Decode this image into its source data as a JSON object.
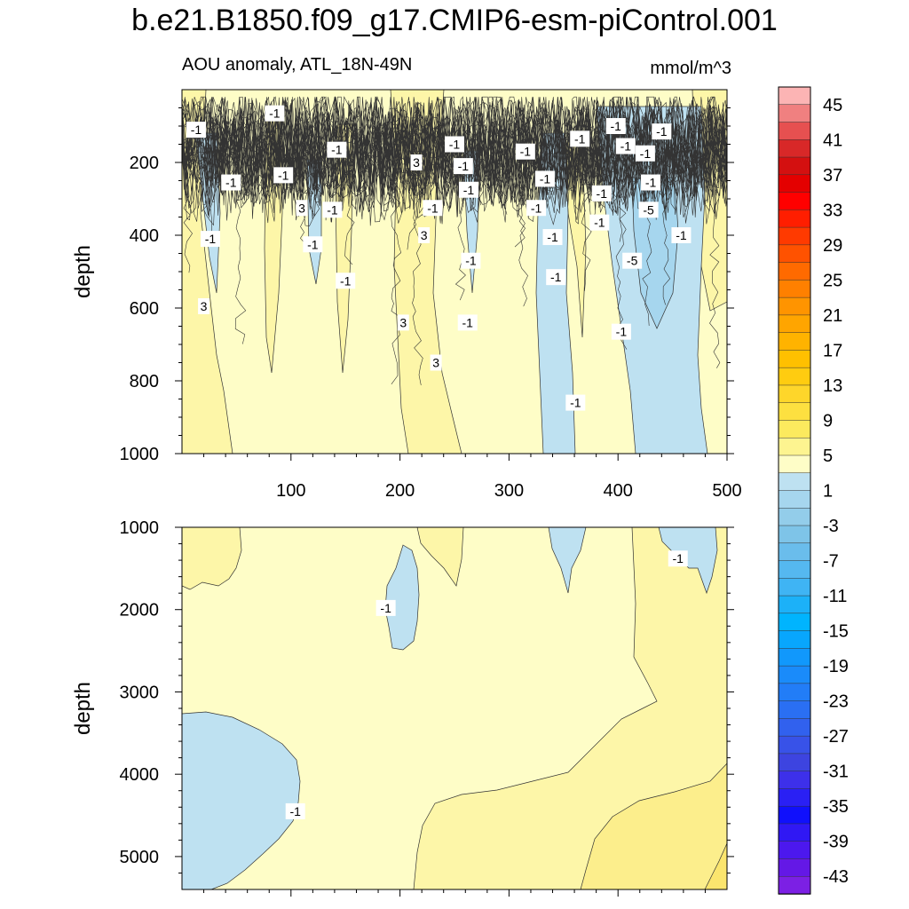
{
  "figure_title": "b.e21.B1850.f09_g17.CMIP6-esm-piControl.001",
  "subtitle": "AOU anomaly, ATL_18N-49N",
  "units": "mmol/m^3",
  "colors": {
    "cold1": "#bee1f1",
    "warm1": "#fefdc7",
    "warm2": "#fdf6a8",
    "warm3": "#fcee8c",
    "warm4": "#fbe56e",
    "line": "#333333"
  },
  "chart_data": [
    {
      "type": "contour",
      "panel": "top",
      "xlabel": "",
      "ylabel": "depth",
      "xlim": [
        0,
        500
      ],
      "ylim": [
        1000,
        0
      ],
      "xticks": [
        100,
        200,
        300,
        400,
        500
      ],
      "xtick_labels": [
        "100",
        "200",
        "300",
        "400",
        "500"
      ],
      "yticks": [
        200,
        400,
        600,
        800,
        1000
      ],
      "ytick_labels": [
        "200",
        "400",
        "600",
        "800",
        "1000"
      ],
      "contour_labels": [
        {
          "x": 85,
          "depth": 65,
          "text": "-1"
        },
        {
          "x": 13,
          "depth": 110,
          "text": "-1"
        },
        {
          "x": 142,
          "depth": 165,
          "text": "-1"
        },
        {
          "x": 250,
          "depth": 150,
          "text": "-1"
        },
        {
          "x": 315,
          "depth": 170,
          "text": "-1"
        },
        {
          "x": 365,
          "depth": 135,
          "text": "-1"
        },
        {
          "x": 398,
          "depth": 100,
          "text": "-1"
        },
        {
          "x": 407,
          "depth": 155,
          "text": "-1"
        },
        {
          "x": 425,
          "depth": 175,
          "text": "-1"
        },
        {
          "x": 440,
          "depth": 115,
          "text": "-1"
        },
        {
          "x": 45,
          "depth": 255,
          "text": "-1"
        },
        {
          "x": 93,
          "depth": 235,
          "text": "-1"
        },
        {
          "x": 215,
          "depth": 200,
          "text": "3"
        },
        {
          "x": 258,
          "depth": 210,
          "text": "-1"
        },
        {
          "x": 263,
          "depth": 275,
          "text": "-1"
        },
        {
          "x": 333,
          "depth": 245,
          "text": "-1"
        },
        {
          "x": 385,
          "depth": 285,
          "text": "-1"
        },
        {
          "x": 430,
          "depth": 255,
          "text": "-1"
        },
        {
          "x": 110,
          "depth": 325,
          "text": "3"
        },
        {
          "x": 138,
          "depth": 330,
          "text": "-1"
        },
        {
          "x": 230,
          "depth": 325,
          "text": "-1"
        },
        {
          "x": 325,
          "depth": 325,
          "text": "-1"
        },
        {
          "x": 428,
          "depth": 330,
          "text": "-5"
        },
        {
          "x": 383,
          "depth": 365,
          "text": "-1"
        },
        {
          "x": 26,
          "depth": 410,
          "text": "-1"
        },
        {
          "x": 222,
          "depth": 400,
          "text": "3"
        },
        {
          "x": 120,
          "depth": 425,
          "text": "-1"
        },
        {
          "x": 340,
          "depth": 405,
          "text": "-1"
        },
        {
          "x": 458,
          "depth": 400,
          "text": "-1"
        },
        {
          "x": 265,
          "depth": 470,
          "text": "-1"
        },
        {
          "x": 413,
          "depth": 470,
          "text": "-5"
        },
        {
          "x": 150,
          "depth": 525,
          "text": "-1"
        },
        {
          "x": 343,
          "depth": 515,
          "text": "-1"
        },
        {
          "x": 20,
          "depth": 595,
          "text": "3"
        },
        {
          "x": 203,
          "depth": 640,
          "text": "3"
        },
        {
          "x": 262,
          "depth": 640,
          "text": "-1"
        },
        {
          "x": 403,
          "depth": 665,
          "text": "-1"
        },
        {
          "x": 233,
          "depth": 750,
          "text": "3"
        },
        {
          "x": 361,
          "depth": 860,
          "text": "-1"
        }
      ]
    },
    {
      "type": "contour",
      "panel": "bottom",
      "xlabel": "",
      "ylabel": "depth",
      "xlim": [
        0,
        500
      ],
      "ylim": [
        5400,
        1000
      ],
      "yticks": [
        1000,
        2000,
        3000,
        4000,
        5000
      ],
      "ytick_labels": [
        "1000",
        "2000",
        "3000",
        "4000",
        "5000"
      ],
      "contour_labels": [
        {
          "x": 455,
          "depth": 1380,
          "text": "-1"
        },
        {
          "x": 187,
          "depth": 1980,
          "text": "-1"
        },
        {
          "x": 104,
          "depth": 4450,
          "text": "-1"
        }
      ]
    },
    {
      "type": "colorbar",
      "levels": [
        "45",
        "41",
        "37",
        "33",
        "29",
        "25",
        "21",
        "17",
        "13",
        "9",
        "5",
        "1",
        "-3",
        "-7",
        "-11",
        "-15",
        "-19",
        "-23",
        "-27",
        "-31",
        "-35",
        "-39",
        "-43"
      ],
      "colors": [
        "#fcb4b4",
        "#f08080",
        "#e65050",
        "#d82828",
        "#d41010",
        "#e40000",
        "#ff0000",
        "#ff1e00",
        "#ff3a00",
        "#ff5200",
        "#ff6a00",
        "#ff8000",
        "#ff9400",
        "#ffa500",
        "#ffb300",
        "#ffc000",
        "#ffcc10",
        "#fed62a",
        "#fde040",
        "#fcea5e",
        "#fdf490",
        "#fefdc7",
        "#bee1f1",
        "#a6d6ee",
        "#93cdea",
        "#7ec4e8",
        "#6abdec",
        "#55b8f0",
        "#3fb4f4",
        "#1cb1f8",
        "#00b4fe",
        "#08a6fd",
        "#1198fc",
        "#1a8bfa",
        "#227df7",
        "#2a6ff3",
        "#3161ee",
        "#3852e8",
        "#3d44e0",
        "#3d30ea",
        "#2a20f4",
        "#1010fc",
        "#3018f4",
        "#4c18ee",
        "#6418e6",
        "#7c20e4"
      ]
    }
  ]
}
